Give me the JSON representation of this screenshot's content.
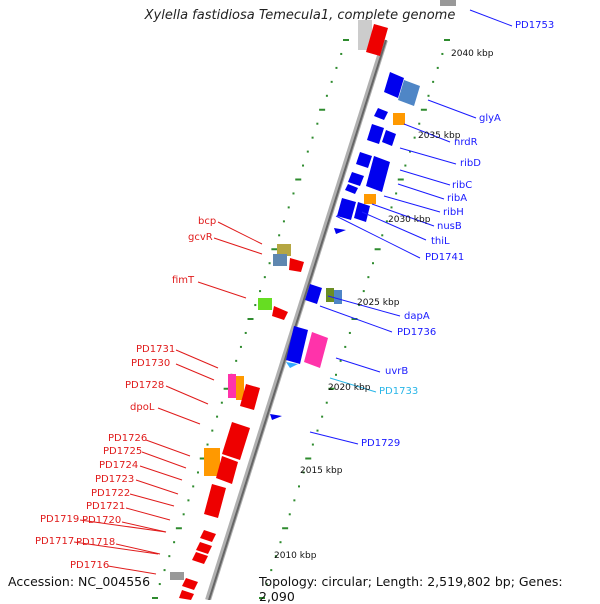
{
  "header": {
    "title": "Xylella fastidiosa Temecula1, complete genome"
  },
  "footer": {
    "accession": "Accession: NC_004556",
    "summary": "Topology: circular; Length: 2,519,802 bp; Genes: 2,090"
  },
  "scale_labels": [
    "2040 kbp",
    "2035 kbp",
    "2030 kbp",
    "2025 kbp",
    "2020 kbp",
    "2015 kbp",
    "2010 kbp"
  ],
  "right_genes": [
    "PD1753",
    "glyA",
    "nrdR",
    "ribD",
    "ribC",
    "ribA",
    "ribH",
    "nusB",
    "thiL",
    "PD1741",
    "dapA",
    "PD1736",
    "uvrB",
    "PD1733",
    "PD1729"
  ],
  "left_genes": [
    "bcp",
    "gcvR",
    "fimT",
    "PD1731",
    "PD1730",
    "PD1728",
    "dpoL",
    "PD1726",
    "PD1725",
    "PD1724",
    "PD1723",
    "PD1722",
    "PD1721",
    "PD1719",
    "PD1720",
    "PD1717",
    "PD1718",
    "PD1716"
  ],
  "colors": {
    "forward_strand": "#0000ee",
    "reverse_strand": "#ee0000",
    "genome_axis": "#888888",
    "tick": "#2e8b2e",
    "highlight_label": "#29b6e8"
  }
}
